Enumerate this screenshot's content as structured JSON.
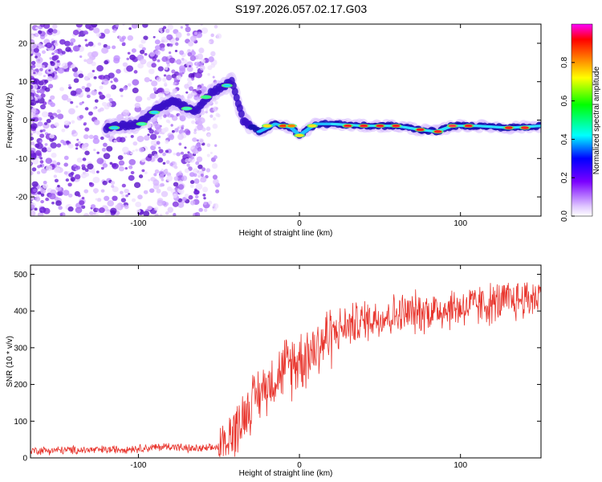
{
  "title": "S197.2026.057.02.17.G03",
  "chart_data": [
    {
      "type": "heatmap",
      "name": "spectrogram",
      "xlabel": "Height of straight line (km)",
      "ylabel": "Frequency (Hz)",
      "xlim": [
        -167,
        150
      ],
      "ylim": [
        -25,
        25
      ],
      "xticks": [
        -100,
        0,
        100
      ],
      "yticks": [
        -20,
        -10,
        0,
        10,
        20
      ],
      "colorbar": {
        "label": "Normalized spectral amplitude",
        "range": [
          0,
          1
        ],
        "ticks": [
          0.0,
          0.2,
          0.4,
          0.6,
          0.8
        ],
        "tick_labels": [
          "0.0",
          "0.2",
          "0.4",
          "0.6",
          "0.8"
        ],
        "colors": [
          "#ffffff",
          "#7a00ff",
          "#0000ff",
          "#00ffff",
          "#00ff00",
          "#ffff00",
          "#ff8000",
          "#ff0000",
          "#ff00ff"
        ]
      },
      "signal_track": {
        "description_points_km_hz": [
          [
            -120,
            -2
          ],
          [
            -100,
            -1
          ],
          [
            -88,
            3
          ],
          [
            -78,
            5
          ],
          [
            -65,
            2
          ],
          [
            -55,
            7
          ],
          [
            -42,
            10
          ],
          [
            -35,
            0
          ],
          [
            -25,
            -3
          ],
          [
            -15,
            -1
          ],
          [
            -5,
            -2
          ],
          [
            0,
            -4
          ],
          [
            10,
            -1
          ],
          [
            20,
            -1
          ],
          [
            40,
            -1.5
          ],
          [
            60,
            -1.5
          ],
          [
            75,
            -2.5
          ],
          [
            85,
            -3
          ],
          [
            95,
            -1.5
          ],
          [
            110,
            -1.5
          ],
          [
            130,
            -2
          ],
          [
            150,
            -1.5
          ]
        ]
      }
    },
    {
      "type": "line",
      "name": "snr",
      "xlabel": "Height of straight line (km)",
      "ylabel": "SNR (10 * v/v)",
      "xlim": [
        -167,
        150
      ],
      "ylim": [
        0,
        525
      ],
      "xticks": [
        -100,
        0,
        100
      ],
      "yticks": [
        0,
        100,
        200,
        300,
        400,
        500
      ],
      "color": "#e8342c",
      "trend_points": [
        [
          -167,
          20
        ],
        [
          -120,
          22
        ],
        [
          -90,
          28
        ],
        [
          -80,
          32
        ],
        [
          -70,
          25
        ],
        [
          -55,
          25
        ],
        [
          -45,
          40
        ],
        [
          -38,
          90
        ],
        [
          -30,
          150
        ],
        [
          -20,
          200
        ],
        [
          -10,
          240
        ],
        [
          0,
          270
        ],
        [
          10,
          300
        ],
        [
          20,
          340
        ],
        [
          30,
          360
        ],
        [
          45,
          380
        ],
        [
          60,
          390
        ],
        [
          80,
          400
        ],
        [
          100,
          410
        ],
        [
          120,
          420
        ],
        [
          150,
          440
        ]
      ]
    }
  ]
}
